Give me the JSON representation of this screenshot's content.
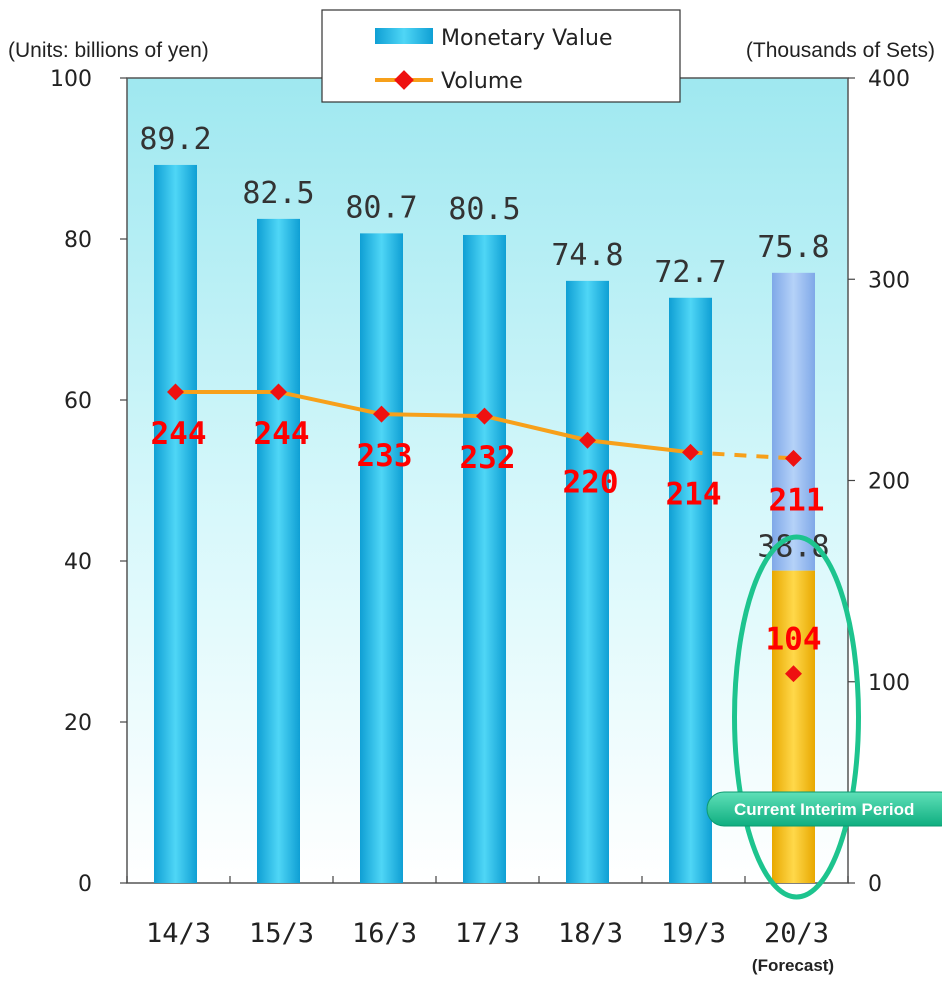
{
  "chart_data": {
    "type": "bar",
    "categories": [
      "14/3",
      "15/3",
      "16/3",
      "17/3",
      "18/3",
      "19/3",
      "20/3"
    ],
    "forecast_note": "(Forecast)",
    "y_left": {
      "unit_label": "(Units: billions of yen)",
      "range": [
        0,
        100
      ],
      "ticks": [
        "0",
        "20",
        "40",
        "60",
        "80",
        "100"
      ]
    },
    "y_right": {
      "unit_label": "(Thousands of Sets)",
      "range": [
        0,
        400
      ],
      "ticks": [
        "0",
        "100",
        "200",
        "300",
        "400"
      ]
    },
    "series": [
      {
        "name": "Monetary Value",
        "kind": "bar",
        "axis": "left",
        "values": [
          89.2,
          82.5,
          80.7,
          80.5,
          74.8,
          72.7,
          75.8
        ],
        "labels": [
          "89.2",
          "82.5",
          "80.7",
          "80.5",
          "74.8",
          "72.7",
          "75.8"
        ]
      },
      {
        "name": "Volume",
        "kind": "line",
        "axis": "right",
        "values": [
          244,
          244,
          233,
          232,
          220,
          214,
          211
        ],
        "labels": [
          "244",
          "244",
          "233",
          "232",
          "220",
          "214",
          "211"
        ],
        "last_segment_dashed": true
      }
    ],
    "interim": {
      "category": "20/3",
      "value": 38.8,
      "value_label": "38.8",
      "volume": 104,
      "volume_label": "104",
      "badge": "Current Interim Period"
    },
    "colors": {
      "bar": "#19b9e6",
      "bar_forecast": "#8fb6ee",
      "bar_interim": "#f0b800",
      "line": "#f7a01a",
      "marker": "#ee1111",
      "plot_bg": "#d6f7fb",
      "highlight": "#1dc48e"
    }
  }
}
